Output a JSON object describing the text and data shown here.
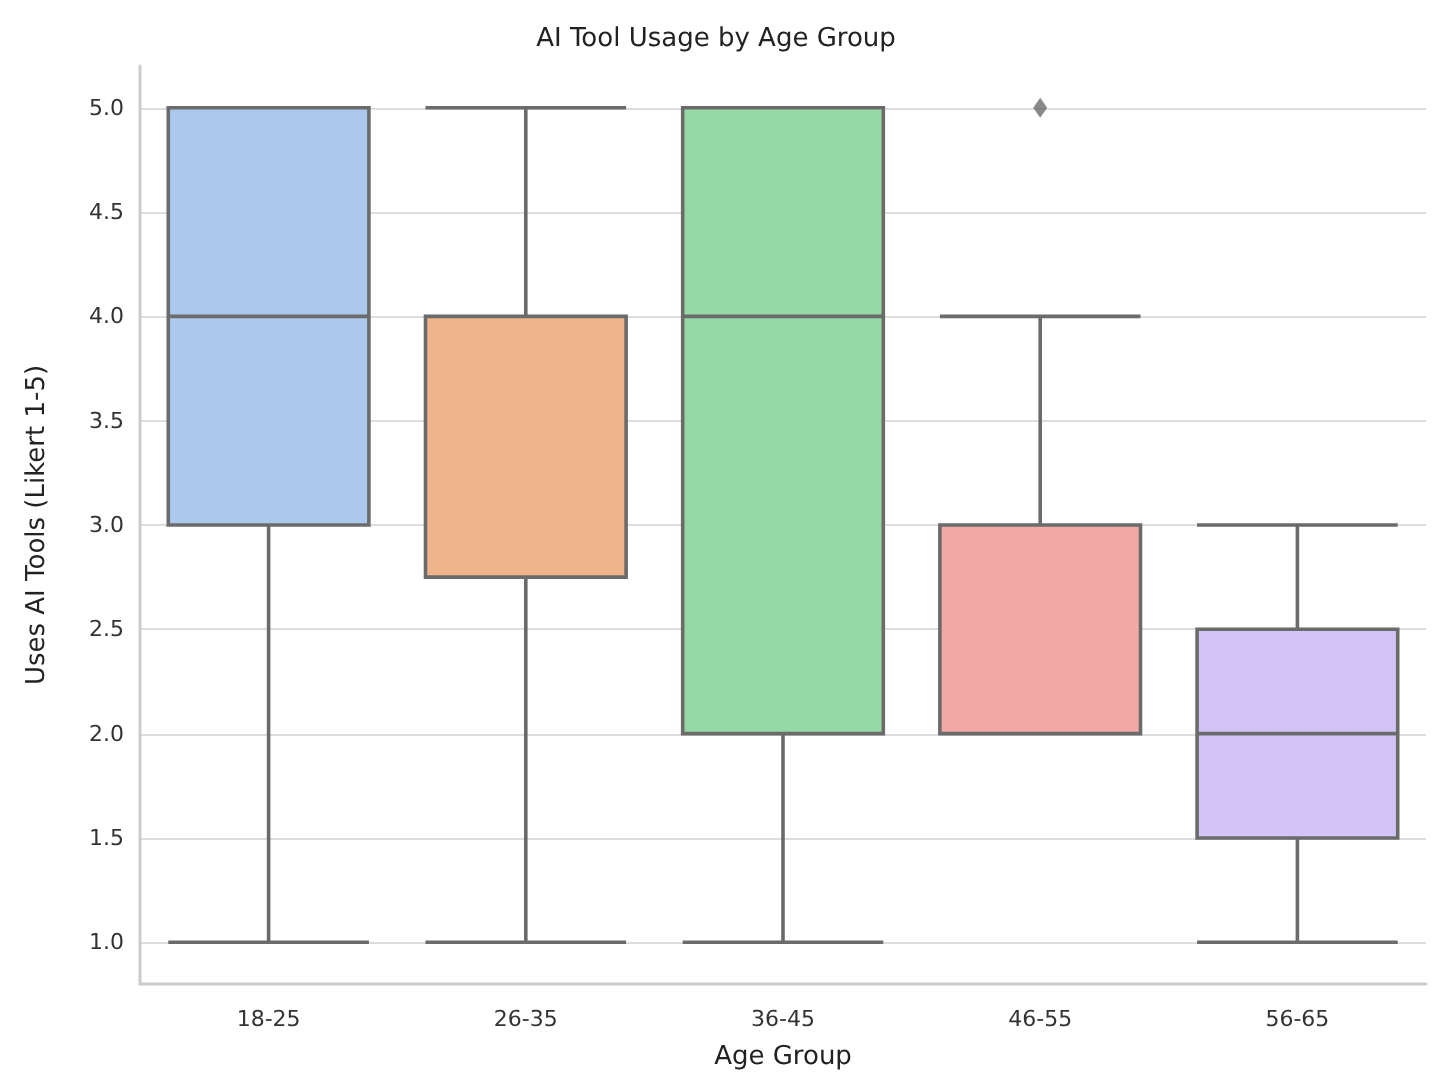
{
  "chart_data": {
    "type": "box",
    "title": "AI Tool Usage by Age Group",
    "xlabel": "Age Group",
    "ylabel": "Uses AI Tools (Likert 1-5)",
    "categories": [
      "18-25",
      "26-35",
      "36-45",
      "46-55",
      "56-65"
    ],
    "colors": [
      "#abc9ed",
      "#f0b48d",
      "#97d9a6",
      "#f2a9a6",
      "#d2c4f7"
    ],
    "boxes": [
      {
        "low": 1,
        "q1": 3,
        "median": 4,
        "q3": 5,
        "high": 5
      },
      {
        "low": 1,
        "q1": 2.75,
        "median": 4,
        "q3": 4,
        "high": 5
      },
      {
        "low": 1,
        "q1": 2,
        "median": 4,
        "q3": 5,
        "high": 5
      },
      {
        "low": 2,
        "q1": 2,
        "median": 2,
        "q3": 3,
        "high": 4,
        "outliers": [
          5
        ]
      },
      {
        "low": 1,
        "q1": 1.5,
        "median": 2,
        "q3": 2.5,
        "high": 3
      }
    ],
    "ylim": [
      0.8,
      5.2
    ],
    "yticks": [
      {
        "value": 1,
        "label": "1.0"
      },
      {
        "value": 1.5,
        "label": "1.5"
      },
      {
        "value": 2,
        "label": "2.0"
      },
      {
        "value": 2.5,
        "label": "2.5"
      },
      {
        "value": 3,
        "label": "3.0"
      },
      {
        "value": 3.5,
        "label": "3.5"
      },
      {
        "value": 4,
        "label": "4.0"
      },
      {
        "value": 4.5,
        "label": "4.5"
      },
      {
        "value": 5,
        "label": "5.0"
      }
    ],
    "grid": "y",
    "marker": "diamond"
  }
}
